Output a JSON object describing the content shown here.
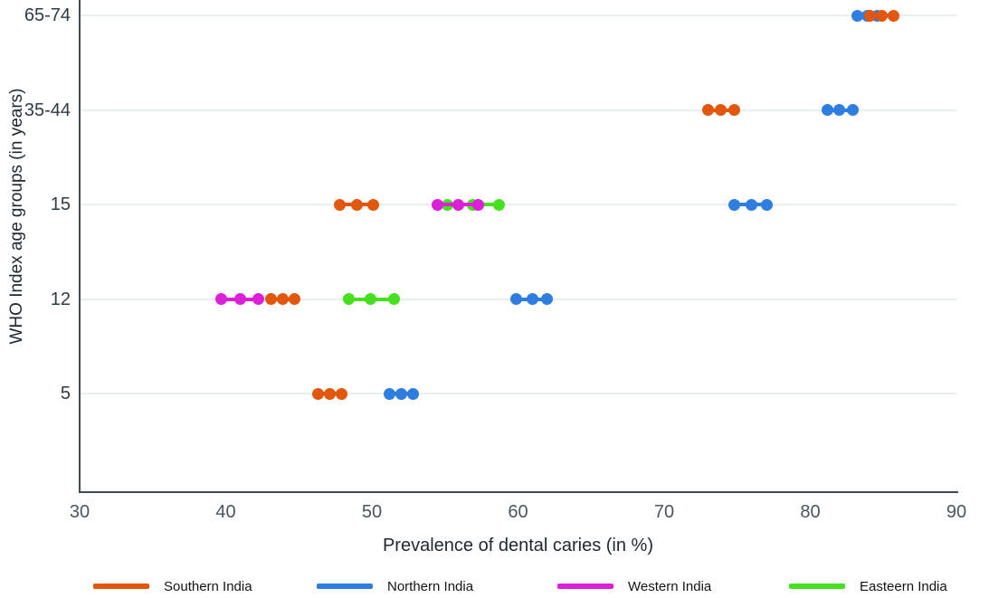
{
  "chart_data": {
    "type": "scatter",
    "title": "",
    "xlabel": "Prevalence of dental caries (in %)",
    "ylabel": "WHO Index age groups (in years)",
    "xlim": [
      30,
      90
    ],
    "x_ticks": [
      30,
      40,
      50,
      60,
      70,
      80,
      90
    ],
    "categories": [
      "5",
      "12",
      "15",
      "35-44",
      "65-74"
    ],
    "grid": "horizontal-category-lines",
    "legend_position": "bottom",
    "series": [
      {
        "name": "Southern India",
        "color": "#e2570d",
        "z": 3,
        "points": {
          "5": [
            46.3,
            47.1,
            47.9
          ],
          "12": [
            43.1,
            43.9,
            44.7
          ],
          "15": [
            47.8,
            49.0,
            50.1
          ],
          "35-44": [
            73.0,
            73.9,
            74.8
          ],
          "65-74": [
            84.1,
            84.9,
            85.7
          ]
        }
      },
      {
        "name": "Northern India",
        "color": "#2e7de0",
        "z": 1,
        "points": {
          "5": [
            51.2,
            52.0,
            52.8
          ],
          "12": [
            59.9,
            61.0,
            62.0
          ],
          "15": [
            74.8,
            76.0,
            77.0
          ],
          "35-44": [
            81.2,
            82.0,
            82.9
          ],
          "65-74": [
            83.2,
            83.9,
            84.6
          ]
        }
      },
      {
        "name": "Western India",
        "color": "#dc1fd8",
        "z": 4,
        "points": {
          "12": [
            39.7,
            41.0,
            42.2
          ],
          "15": [
            54.5,
            55.9,
            57.3
          ]
        }
      },
      {
        "name": "Easteern India",
        "color": "#46e01e",
        "z": 2,
        "points": {
          "12": [
            48.4,
            49.9,
            51.5
          ],
          "15": [
            55.2,
            56.9,
            58.7
          ]
        }
      }
    ]
  }
}
